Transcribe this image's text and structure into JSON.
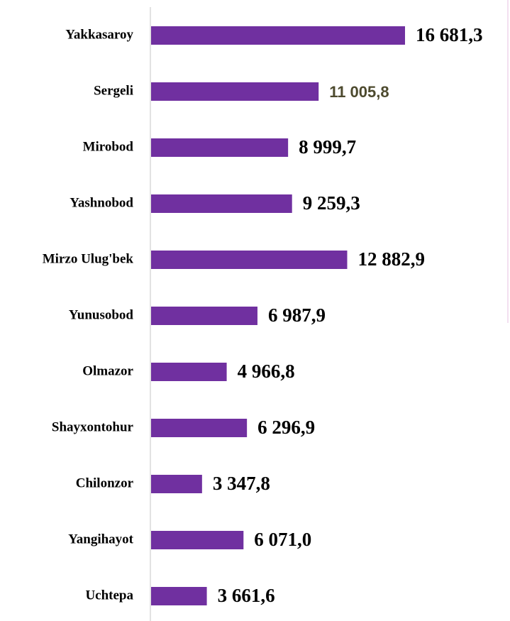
{
  "chart_data": {
    "type": "barh",
    "categories": [
      "Yakkasaroy",
      "Sergeli",
      "Mirobod",
      "Yashnobod",
      "Mirzo Ulug'bek",
      "Yunusobod",
      "Olmazor",
      "Shayxontohur",
      "Chilonzor",
      "Yangihayot",
      "Uchtepa"
    ],
    "values": [
      16681.3,
      11005.8,
      8999.7,
      9259.3,
      12882.9,
      6987.9,
      4966.8,
      6296.9,
      3347.8,
      6071.0,
      3661.6
    ],
    "value_labels": [
      "16 681,3",
      "11 005,8",
      "8 999,7",
      "9 259,3",
      "12 882,9",
      "6 987,9",
      "4 966,8",
      "6 296,9",
      "3 347,8",
      "6 071,0",
      "3 661,6"
    ],
    "value_label_colors": [
      "#000000",
      "#4d4a2e",
      "#000000",
      "#000000",
      "#000000",
      "#000000",
      "#000000",
      "#000000",
      "#000000",
      "#000000",
      "#000000"
    ],
    "color": "#7030a0"
  }
}
